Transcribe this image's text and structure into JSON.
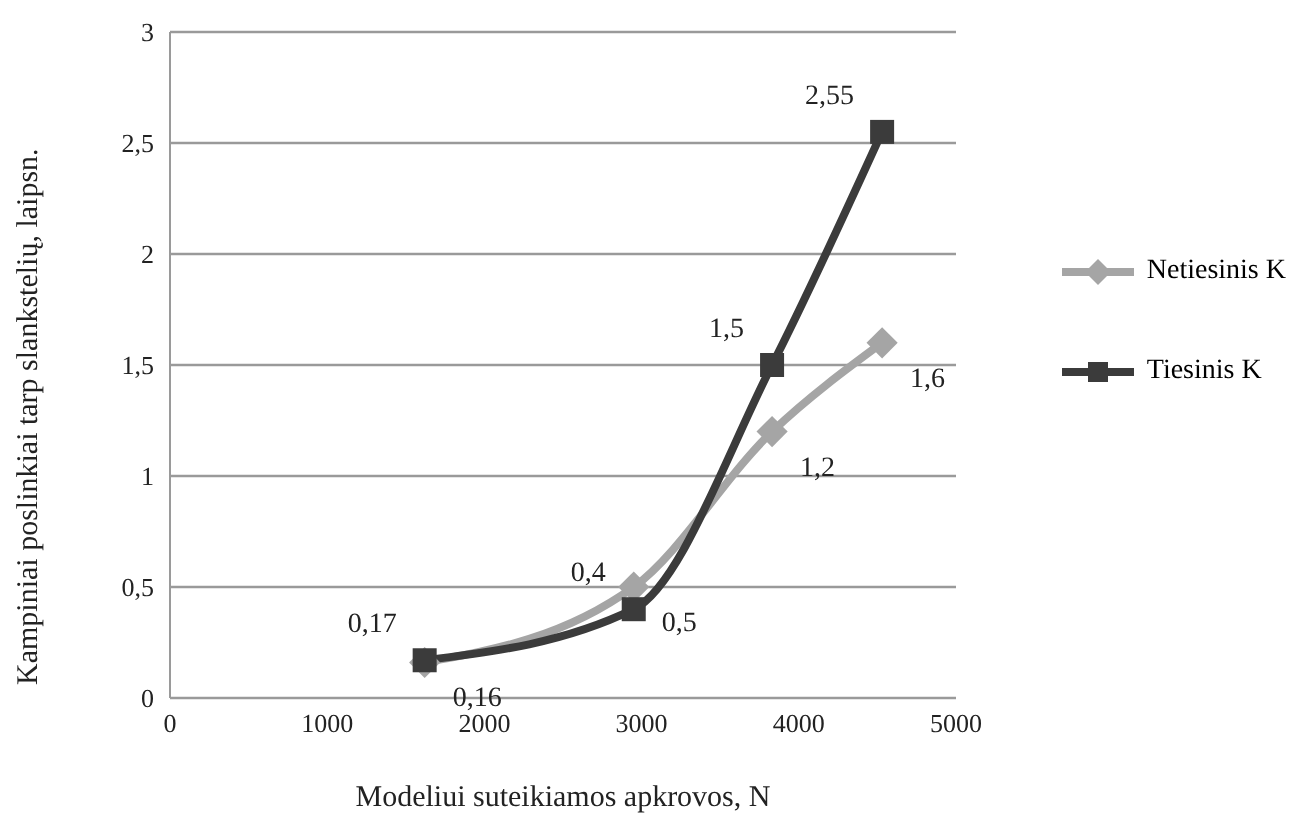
{
  "chart_data": {
    "type": "line",
    "xlabel": "Modeliui suteikiamos apkrovos, N",
    "ylabel": "Kampiniai poslinkiai tarp slankstelių, laipsn.",
    "x": [
      1620,
      2950,
      3830,
      4530
    ],
    "series": [
      {
        "name": "Netiesinis K",
        "color": "#a5a5a5",
        "marker": "diamond",
        "values": [
          0.16,
          0.5,
          1.2,
          1.6
        ],
        "value_labels": [
          "0,16",
          "0,5",
          "1,2",
          "1,6"
        ]
      },
      {
        "name": "Tiesinis K",
        "color": "#3b3b3b",
        "marker": "square",
        "values": [
          0.17,
          0.4,
          1.5,
          2.55
        ],
        "value_labels": [
          "0,17",
          "0,4",
          "1,5",
          "2,55"
        ]
      }
    ],
    "xlim": [
      0,
      5000
    ],
    "xticks": [
      0,
      1000,
      2000,
      3000,
      4000,
      5000
    ],
    "ylim": [
      0,
      3
    ],
    "yticks": [
      0,
      {
        "value": 0.5,
        "label": "0,5"
      },
      1,
      {
        "value": 1.5,
        "label": "1,5"
      },
      2,
      {
        "value": 2.5,
        "label": "2,5"
      },
      3
    ],
    "grid": "y",
    "legend": "right"
  }
}
